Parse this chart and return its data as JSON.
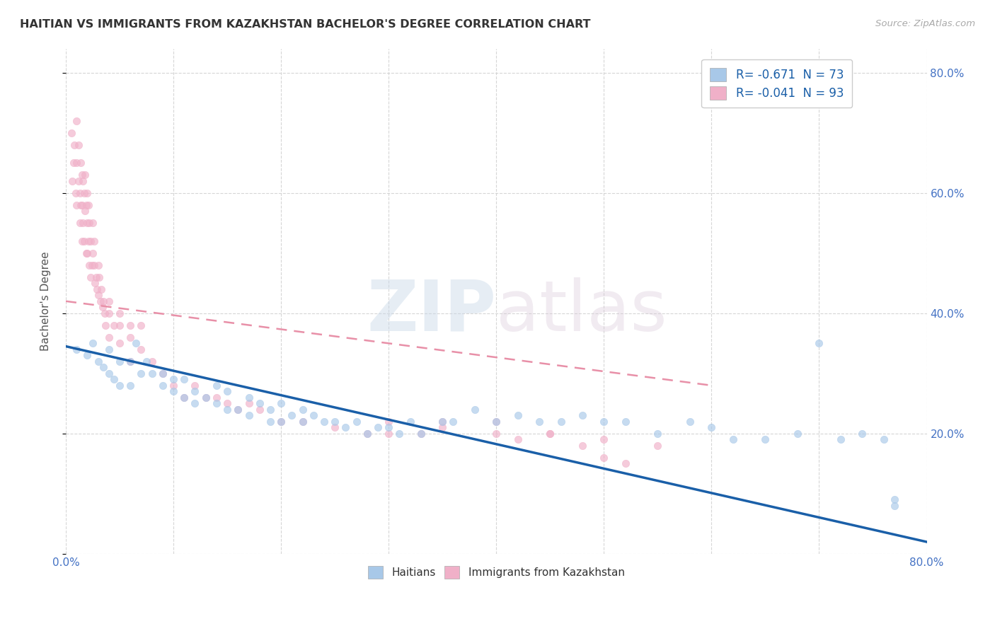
{
  "title": "HAITIAN VS IMMIGRANTS FROM KAZAKHSTAN BACHELOR'S DEGREE CORRELATION CHART",
  "source": "Source: ZipAtlas.com",
  "ylabel": "Bachelor's Degree",
  "xlim": [
    0.0,
    0.8
  ],
  "ylim": [
    0.0,
    0.84
  ],
  "legend_r1": "R= -0.671",
  "legend_n1": "N = 73",
  "legend_r2": "R= -0.041",
  "legend_n2": "N = 93",
  "series1_color": "#a8c8e8",
  "series2_color": "#f0b0c8",
  "trendline1_color": "#1a5fa8",
  "trendline2_color": "#e890a8",
  "watermark_zip": "ZIP",
  "watermark_atlas": "atlas",
  "legend_label1": "Haitians",
  "legend_label2": "Immigrants from Kazakhstan",
  "blue_scatter_x": [
    0.01,
    0.02,
    0.025,
    0.03,
    0.035,
    0.04,
    0.04,
    0.045,
    0.05,
    0.05,
    0.06,
    0.06,
    0.065,
    0.07,
    0.075,
    0.08,
    0.09,
    0.09,
    0.1,
    0.1,
    0.11,
    0.11,
    0.12,
    0.12,
    0.13,
    0.14,
    0.14,
    0.15,
    0.15,
    0.16,
    0.17,
    0.17,
    0.18,
    0.19,
    0.19,
    0.2,
    0.2,
    0.21,
    0.22,
    0.22,
    0.23,
    0.24,
    0.25,
    0.26,
    0.27,
    0.28,
    0.29,
    0.3,
    0.31,
    0.32,
    0.33,
    0.35,
    0.36,
    0.38,
    0.4,
    0.42,
    0.44,
    0.46,
    0.48,
    0.5,
    0.52,
    0.55,
    0.58,
    0.6,
    0.62,
    0.65,
    0.68,
    0.7,
    0.72,
    0.74,
    0.76,
    0.77,
    0.77
  ],
  "blue_scatter_y": [
    0.34,
    0.33,
    0.35,
    0.32,
    0.31,
    0.3,
    0.34,
    0.29,
    0.32,
    0.28,
    0.32,
    0.28,
    0.35,
    0.3,
    0.32,
    0.3,
    0.28,
    0.3,
    0.27,
    0.29,
    0.29,
    0.26,
    0.27,
    0.25,
    0.26,
    0.25,
    0.28,
    0.27,
    0.24,
    0.24,
    0.26,
    0.23,
    0.25,
    0.24,
    0.22,
    0.25,
    0.22,
    0.23,
    0.22,
    0.24,
    0.23,
    0.22,
    0.22,
    0.21,
    0.22,
    0.2,
    0.21,
    0.21,
    0.2,
    0.22,
    0.2,
    0.22,
    0.22,
    0.24,
    0.22,
    0.23,
    0.22,
    0.22,
    0.23,
    0.22,
    0.22,
    0.2,
    0.22,
    0.21,
    0.19,
    0.19,
    0.2,
    0.35,
    0.19,
    0.2,
    0.19,
    0.08,
    0.09
  ],
  "pink_scatter_x": [
    0.005,
    0.006,
    0.007,
    0.008,
    0.009,
    0.01,
    0.01,
    0.01,
    0.012,
    0.012,
    0.013,
    0.013,
    0.014,
    0.014,
    0.015,
    0.015,
    0.015,
    0.016,
    0.016,
    0.017,
    0.017,
    0.018,
    0.018,
    0.019,
    0.019,
    0.02,
    0.02,
    0.02,
    0.021,
    0.021,
    0.022,
    0.022,
    0.023,
    0.023,
    0.024,
    0.025,
    0.025,
    0.026,
    0.026,
    0.027,
    0.028,
    0.029,
    0.03,
    0.03,
    0.031,
    0.032,
    0.033,
    0.034,
    0.035,
    0.036,
    0.037,
    0.04,
    0.04,
    0.04,
    0.045,
    0.05,
    0.05,
    0.05,
    0.06,
    0.06,
    0.06,
    0.07,
    0.07,
    0.08,
    0.09,
    0.1,
    0.11,
    0.12,
    0.13,
    0.14,
    0.15,
    0.16,
    0.17,
    0.18,
    0.2,
    0.22,
    0.25,
    0.28,
    0.3,
    0.33,
    0.35,
    0.4,
    0.42,
    0.45,
    0.48,
    0.5,
    0.52,
    0.3,
    0.35,
    0.4,
    0.45,
    0.5,
    0.55
  ],
  "pink_scatter_y": [
    0.7,
    0.62,
    0.65,
    0.68,
    0.6,
    0.72,
    0.65,
    0.58,
    0.62,
    0.68,
    0.6,
    0.55,
    0.65,
    0.58,
    0.63,
    0.58,
    0.52,
    0.62,
    0.55,
    0.6,
    0.52,
    0.63,
    0.57,
    0.58,
    0.5,
    0.6,
    0.55,
    0.5,
    0.58,
    0.52,
    0.55,
    0.48,
    0.52,
    0.46,
    0.48,
    0.5,
    0.55,
    0.48,
    0.52,
    0.45,
    0.46,
    0.44,
    0.48,
    0.43,
    0.46,
    0.42,
    0.44,
    0.41,
    0.42,
    0.4,
    0.38,
    0.4,
    0.36,
    0.42,
    0.38,
    0.38,
    0.35,
    0.4,
    0.36,
    0.32,
    0.38,
    0.34,
    0.38,
    0.32,
    0.3,
    0.28,
    0.26,
    0.28,
    0.26,
    0.26,
    0.25,
    0.24,
    0.25,
    0.24,
    0.22,
    0.22,
    0.21,
    0.2,
    0.22,
    0.2,
    0.22,
    0.2,
    0.19,
    0.2,
    0.18,
    0.16,
    0.15,
    0.2,
    0.21,
    0.22,
    0.2,
    0.19,
    0.18
  ],
  "blue_trendline_x": [
    0.0,
    0.8
  ],
  "blue_trendline_y": [
    0.345,
    0.02
  ],
  "pink_trendline_x": [
    0.0,
    0.6
  ],
  "pink_trendline_y": [
    0.42,
    0.28
  ],
  "background_color": "#ffffff",
  "grid_color": "#cccccc",
  "title_color": "#333333",
  "axis_tick_color": "#4472c4",
  "scatter_size": 55,
  "scatter_alpha": 0.65
}
